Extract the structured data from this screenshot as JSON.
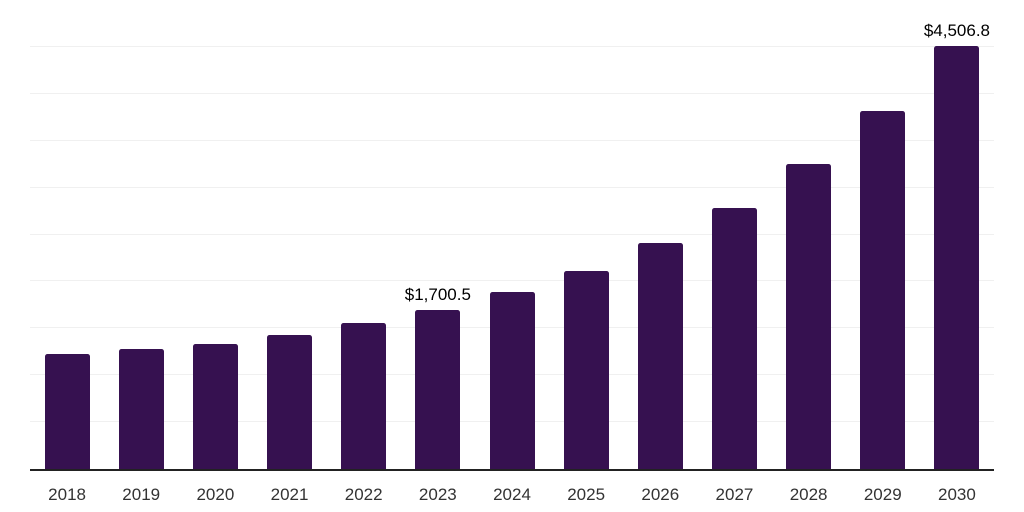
{
  "chart_data": {
    "type": "bar",
    "categories": [
      "2018",
      "2019",
      "2020",
      "2021",
      "2022",
      "2023",
      "2024",
      "2025",
      "2026",
      "2027",
      "2028",
      "2029",
      "2030"
    ],
    "values": [
      1225,
      1275,
      1335,
      1428,
      1553,
      1700.5,
      1887,
      2111,
      2414,
      2788,
      3253,
      3819,
      4506.8
    ],
    "value_labels": [
      "",
      "",
      "",
      "",
      "",
      "$1,700.5",
      "",
      "",
      "",
      "",
      "",
      "",
      "$4,506.8"
    ],
    "ylim": [
      0,
      5000
    ],
    "gridline_step": 500,
    "grid": true,
    "legend": false,
    "colors": {
      "bar": "#361150",
      "grid": "#f0f0f0",
      "axis": "#222222",
      "tick_label": "#333333",
      "value_label": "#000000",
      "background": "#ffffff"
    }
  }
}
